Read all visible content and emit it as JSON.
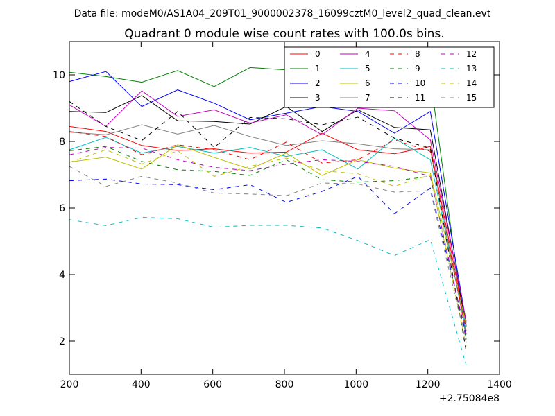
{
  "suptitle": "Data file: modeM0/AS1A04_209T01_9000002378_16099cztM0_level2_quad_clean.evt",
  "chart_data": {
    "type": "line",
    "title": "Quadrant 0 module wise count rates with 100.0s bins.",
    "xlabel": "",
    "ylabel": "",
    "x_offset_label": "+2.75084e8",
    "xlim": [
      200,
      1400
    ],
    "ylim": [
      1,
      11
    ],
    "xticks": [
      200,
      400,
      600,
      800,
      1000,
      1200,
      1400
    ],
    "yticks": [
      2,
      4,
      6,
      8,
      10
    ],
    "grid": false,
    "legend_placement": "top-right",
    "legend_columns": 4,
    "x": [
      200,
      302,
      402,
      502,
      604,
      704,
      805,
      905,
      1005,
      1107,
      1207,
      1307
    ],
    "series": [
      {
        "name": "0",
        "color": "#ff0000",
        "dash": "solid",
        "values": [
          8.45,
          8.3,
          7.88,
          7.73,
          7.78,
          7.65,
          7.68,
          8.25,
          7.75,
          7.63,
          7.85,
          2.42
        ]
      },
      {
        "name": "1",
        "color": "#008000",
        "dash": "solid",
        "values": [
          10.08,
          9.95,
          9.78,
          10.13,
          9.65,
          10.22,
          10.15,
          9.6,
          9.65,
          9.55,
          9.9,
          2.05
        ]
      },
      {
        "name": "2",
        "color": "#0000ff",
        "dash": "solid",
        "values": [
          9.8,
          10.1,
          9.05,
          9.55,
          9.15,
          8.65,
          8.85,
          9.05,
          8.9,
          8.25,
          8.9,
          2.55
        ]
      },
      {
        "name": "3",
        "color": "#000000",
        "dash": "solid",
        "values": [
          8.9,
          8.87,
          9.38,
          8.62,
          8.6,
          8.52,
          9.05,
          8.3,
          8.95,
          8.42,
          8.35,
          2.45
        ]
      },
      {
        "name": "4",
        "color": "#bf00bf",
        "dash": "solid",
        "values": [
          9.1,
          8.45,
          9.52,
          8.75,
          8.95,
          8.55,
          8.8,
          8.2,
          9.0,
          8.92,
          8.05,
          2.6
        ]
      },
      {
        "name": "5",
        "color": "#00bfbf",
        "dash": "solid",
        "values": [
          7.75,
          8.12,
          7.65,
          7.85,
          7.65,
          7.82,
          7.55,
          7.75,
          7.17,
          8.1,
          7.45,
          2.3
        ]
      },
      {
        "name": "6",
        "color": "#bfbf00",
        "dash": "solid",
        "values": [
          7.38,
          7.53,
          7.17,
          7.9,
          7.52,
          7.17,
          7.65,
          6.98,
          7.45,
          7.2,
          7.05,
          2.5
        ]
      },
      {
        "name": "7",
        "color": "#808080",
        "dash": "solid",
        "values": [
          8.28,
          8.2,
          8.5,
          8.22,
          8.48,
          8.15,
          7.88,
          8.02,
          7.93,
          7.78,
          7.75,
          2.2
        ]
      },
      {
        "name": "8",
        "color": "#ff0000",
        "dash": "dashed",
        "values": [
          8.3,
          8.15,
          7.6,
          7.9,
          7.75,
          7.45,
          7.98,
          7.35,
          7.45,
          8.05,
          7.7,
          2.3
        ]
      },
      {
        "name": "9",
        "color": "#008000",
        "dash": "dashed",
        "values": [
          7.72,
          7.85,
          7.4,
          7.15,
          7.1,
          6.98,
          7.45,
          6.85,
          6.78,
          6.82,
          6.95,
          2.05
        ]
      },
      {
        "name": "10",
        "color": "#0000ff",
        "dash": "dashed",
        "values": [
          6.82,
          6.87,
          6.72,
          6.7,
          6.55,
          6.7,
          6.17,
          6.5,
          6.95,
          5.83,
          6.6,
          2.2
        ]
      },
      {
        "name": "11",
        "color": "#000000",
        "dash": "dashed",
        "values": [
          9.2,
          8.45,
          8.03,
          8.9,
          7.82,
          8.72,
          8.68,
          8.5,
          8.73,
          8.1,
          7.8,
          1.7
        ]
      },
      {
        "name": "12",
        "color": "#bf00bf",
        "dash": "dashed",
        "values": [
          7.6,
          7.82,
          7.8,
          7.45,
          7.22,
          7.12,
          7.32,
          7.45,
          7.4,
          7.25,
          6.95,
          2.1
        ]
      },
      {
        "name": "13",
        "color": "#00bfbf",
        "dash": "dashed",
        "values": [
          5.65,
          5.47,
          5.72,
          5.68,
          5.42,
          5.48,
          5.48,
          5.4,
          5.02,
          4.57,
          5.05,
          1.27
        ]
      },
      {
        "name": "14",
        "color": "#bfbf00",
        "dash": "dashed",
        "values": [
          7.37,
          7.75,
          7.32,
          7.72,
          6.95,
          7.25,
          7.5,
          7.12,
          7.03,
          6.65,
          7.0,
          1.85
        ]
      },
      {
        "name": "15",
        "color": "#808080",
        "dash": "dashed",
        "values": [
          7.25,
          6.65,
          6.95,
          6.75,
          6.45,
          6.42,
          6.37,
          6.75,
          6.72,
          6.48,
          6.52,
          1.95
        ]
      }
    ]
  }
}
